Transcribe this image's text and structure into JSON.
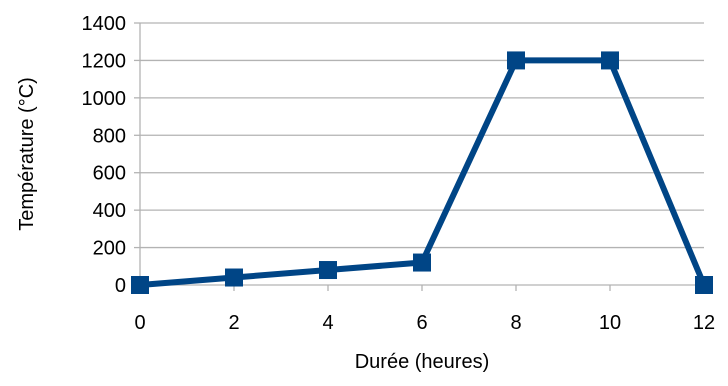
{
  "chart_data": {
    "type": "line",
    "xlabel": "Durée (heures)",
    "ylabel": "Température (°C)",
    "xlim": [
      0,
      12
    ],
    "ylim": [
      0,
      1400
    ],
    "x_ticks": [
      0,
      2,
      4,
      6,
      8,
      10,
      12
    ],
    "y_ticks": [
      0,
      200,
      400,
      600,
      800,
      1000,
      1200,
      1400
    ],
    "grid": "horizontal",
    "legend": "none",
    "marker": "square",
    "colors": {
      "line": "#004586",
      "grid": "#b3b3b3",
      "axis": "#b3b3b3"
    },
    "series": [
      {
        "x": [
          0,
          2,
          4,
          6,
          8,
          10,
          12
        ],
        "y": [
          0,
          40,
          80,
          120,
          1200,
          1200,
          0
        ]
      }
    ]
  }
}
